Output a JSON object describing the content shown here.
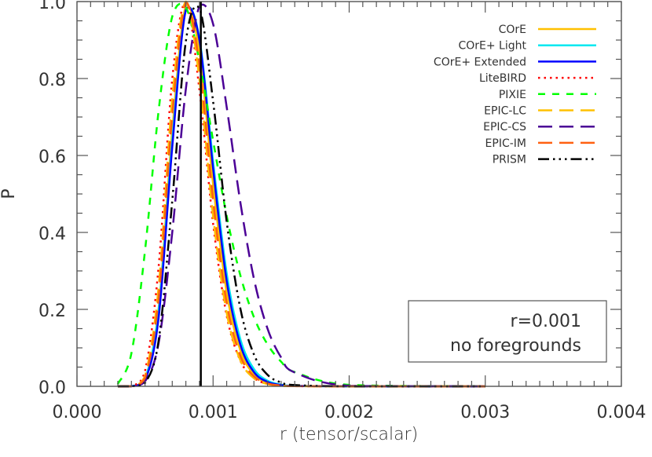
{
  "chart_data": {
    "type": "line",
    "title": "",
    "xlabel": "r (tensor/scalar)",
    "ylabel": "P",
    "xlim": [
      0.0,
      0.004
    ],
    "ylim": [
      0.0,
      1.0
    ],
    "xticks": [
      "0.000",
      "0.001",
      "0.002",
      "0.003",
      "0.004"
    ],
    "yticks": [
      "0.0",
      "0.2",
      "0.4",
      "0.6",
      "0.8",
      "1.0"
    ],
    "grid": false,
    "legend_position": "top-right",
    "x": [
      0.0003,
      0.0004,
      0.0005,
      0.0006,
      0.0007,
      0.0008,
      0.0009,
      0.001,
      0.0011,
      0.0012,
      0.0013,
      0.0014,
      0.0015,
      0.0016,
      0.002,
      0.003
    ],
    "series": [
      {
        "name": "COrE",
        "color": "#ffc000",
        "style": "solid",
        "values": [
          0,
          0.0002,
          0.018,
          0.204,
          0.665,
          0.99,
          0.868,
          0.526,
          0.244,
          0.094,
          0.031,
          0.0093,
          0.0026,
          0.0007,
          0,
          0
        ]
      },
      {
        "name": "COrE+ Light",
        "color": "#00e8f0",
        "style": "solid",
        "values": [
          0,
          0.0003,
          0.019,
          0.197,
          0.639,
          0.979,
          0.904,
          0.585,
          0.294,
          0.123,
          0.045,
          0.0147,
          0.0045,
          0.0013,
          0,
          0
        ]
      },
      {
        "name": "COrE+ Extended",
        "color": "#0000ff",
        "style": "solid",
        "values": [
          0,
          0.0002,
          0.015,
          0.179,
          0.622,
          0.978,
          0.899,
          0.567,
          0.274,
          0.109,
          0.037,
          0.0115,
          0.0033,
          0.0009,
          0,
          0
        ]
      },
      {
        "name": "LiteBIRD",
        "color": "#ff0000",
        "style": "dotted",
        "values": [
          0,
          0.0008,
          0.04,
          0.311,
          0.798,
          0.998,
          0.77,
          0.424,
          0.184,
          0.067,
          0.022,
          0.0064,
          0.0018,
          0.0005,
          0,
          0
        ]
      },
      {
        "name": "PIXIE",
        "color": "#00ff00",
        "style": "dashed",
        "values": [
          0.0059,
          0.086,
          0.353,
          0.717,
          0.961,
          0.985,
          0.844,
          0.639,
          0.443,
          0.289,
          0.18,
          0.109,
          0.064,
          0.037,
          0.0038,
          0
        ]
      },
      {
        "name": "EPIC-LC",
        "color": "#ffc000",
        "style": "longdash",
        "values": [
          0,
          0.0004,
          0.027,
          0.259,
          0.748,
          1.0,
          0.797,
          0.443,
          0.191,
          0.068,
          0.021,
          0.006,
          0.0016,
          0.0004,
          0,
          0
        ]
      },
      {
        "name": "EPIC-CS",
        "color": "#4b0096",
        "style": "longdash",
        "values": [
          0,
          0.0003,
          0.0127,
          0.113,
          0.4,
          0.773,
          0.988,
          0.942,
          0.726,
          0.479,
          0.28,
          0.15,
          0.075,
          0.036,
          0.0013,
          0
        ]
      },
      {
        "name": "EPIC-IM",
        "color": "#ff6010",
        "style": "longdash",
        "values": [
          0,
          0.0003,
          0.022,
          0.23,
          0.706,
          0.997,
          0.834,
          0.484,
          0.217,
          0.08,
          0.026,
          0.0075,
          0.002,
          0.0005,
          0,
          0
        ]
      },
      {
        "name": "PRISM",
        "color": "#000000",
        "style": "dashdotdotdot",
        "values": [
          0,
          0.0001,
          0.0088,
          0.119,
          0.482,
          0.897,
          0.982,
          0.741,
          0.428,
          0.203,
          0.083,
          0.03,
          0.01,
          0.0033,
          0,
          0
        ]
      }
    ],
    "vertical_line": {
      "x": 0.00091,
      "color": "#000000"
    },
    "annotation": {
      "line1": "r=0.001",
      "line2": "no foregrounds"
    }
  }
}
